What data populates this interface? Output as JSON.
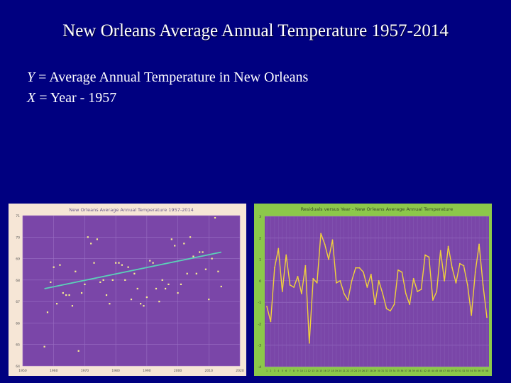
{
  "slide": {
    "title": "New Orleans Average Annual Temperature 1957-2014",
    "def_y_var": "Y",
    "def_y_text": " = Average Annual Temperature in New Orleans",
    "def_x_var": "X",
    "def_x_text": " = Year - 1957"
  },
  "colors": {
    "background": "#000080",
    "plot_purple": "#7a46a8",
    "outer_peach": "#f6e6d6",
    "outer_green": "#8cc84a",
    "trend": "#5bd0b8",
    "points": "#f8f090",
    "resid_line": "#f2d23a"
  },
  "chart_data": [
    {
      "type": "scatter",
      "title": "New Orleans Average Annual Temperature 1957-2014",
      "xlim": [
        1950,
        2020
      ],
      "ylim": [
        64,
        71
      ],
      "x_ticks": [
        "1950",
        "1960",
        "1970",
        "1980",
        "1990",
        "2000",
        "2010",
        "2020"
      ],
      "y_ticks": [
        "64",
        "65",
        "66",
        "67",
        "68",
        "69",
        "70",
        "71"
      ],
      "trendline": {
        "x": [
          1957,
          2014
        ],
        "y": [
          67.6,
          69.3
        ]
      },
      "x": [
        1957,
        1958,
        1959,
        1960,
        1961,
        1962,
        1963,
        1964,
        1965,
        1966,
        1967,
        1968,
        1969,
        1970,
        1971,
        1972,
        1973,
        1974,
        1975,
        1976,
        1977,
        1978,
        1979,
        1980,
        1981,
        1982,
        1983,
        1984,
        1985,
        1986,
        1987,
        1988,
        1989,
        1990,
        1991,
        1992,
        1993,
        1994,
        1995,
        1996,
        1997,
        1998,
        1999,
        2000,
        2001,
        2002,
        2003,
        2004,
        2005,
        2006,
        2007,
        2008,
        2009,
        2010,
        2011,
        2012,
        2013,
        2014
      ],
      "y": [
        64.9,
        66.5,
        67.9,
        68.6,
        66.9,
        68.7,
        67.4,
        67.3,
        67.3,
        66.8,
        68.4,
        64.7,
        67.4,
        67.8,
        70.0,
        69.7,
        68.8,
        69.9,
        67.9,
        68.0,
        67.3,
        66.9,
        68.0,
        68.8,
        68.8,
        68.7,
        68.0,
        68.6,
        67.1,
        68.3,
        67.6,
        66.9,
        66.8,
        67.2,
        68.9,
        68.8,
        67.6,
        67.0,
        68.0,
        67.6,
        67.8,
        69.9,
        69.6,
        67.4,
        67.8,
        69.7,
        68.3,
        70.0,
        69.1,
        68.3,
        69.3,
        69.3,
        68.5,
        67.1,
        69.0,
        70.9,
        68.4,
        67.7
      ]
    },
    {
      "type": "line",
      "title": "Residuals versus Year - New Orleans Average Annual Temperature",
      "ylim": [
        -4,
        3
      ],
      "y_ticks": [
        "3",
        "2",
        "1",
        "0",
        "-1",
        "-2",
        "-3",
        "-4"
      ],
      "categories": [
        "1",
        "2",
        "3",
        "4",
        "5",
        "6",
        "7",
        "8",
        "9",
        "10",
        "11",
        "12",
        "13",
        "14",
        "15",
        "16",
        "17",
        "18",
        "19",
        "20",
        "21",
        "22",
        "23",
        "24",
        "25",
        "26",
        "27",
        "28",
        "29",
        "30",
        "31",
        "32",
        "33",
        "34",
        "35",
        "36",
        "37",
        "38",
        "39",
        "40",
        "41",
        "42",
        "43",
        "44",
        "45",
        "46",
        "47",
        "48",
        "49",
        "50",
        "51",
        "52",
        "53",
        "54",
        "55",
        "56",
        "57",
        "58"
      ],
      "values": [
        -1.2,
        -1.9,
        0.6,
        1.5,
        -0.5,
        1.2,
        -0.2,
        -0.3,
        0.2,
        -0.6,
        0.7,
        -2.9,
        0.1,
        -0.1,
        2.2,
        1.7,
        1.0,
        1.9,
        -0.1,
        0.0,
        -0.6,
        -0.9,
        0.0,
        0.6,
        0.6,
        0.4,
        -0.3,
        0.3,
        -1.1,
        0.0,
        -0.6,
        -1.3,
        -1.4,
        -1.1,
        0.5,
        0.4,
        -0.6,
        -1.1,
        0.1,
        -0.5,
        -0.4,
        1.2,
        1.1,
        -0.9,
        -0.5,
        1.4,
        0.0,
        1.6,
        0.6,
        -0.1,
        0.8,
        0.7,
        -0.2,
        -1.6,
        0.4,
        1.7,
        -0.2,
        -1.7
      ]
    }
  ]
}
